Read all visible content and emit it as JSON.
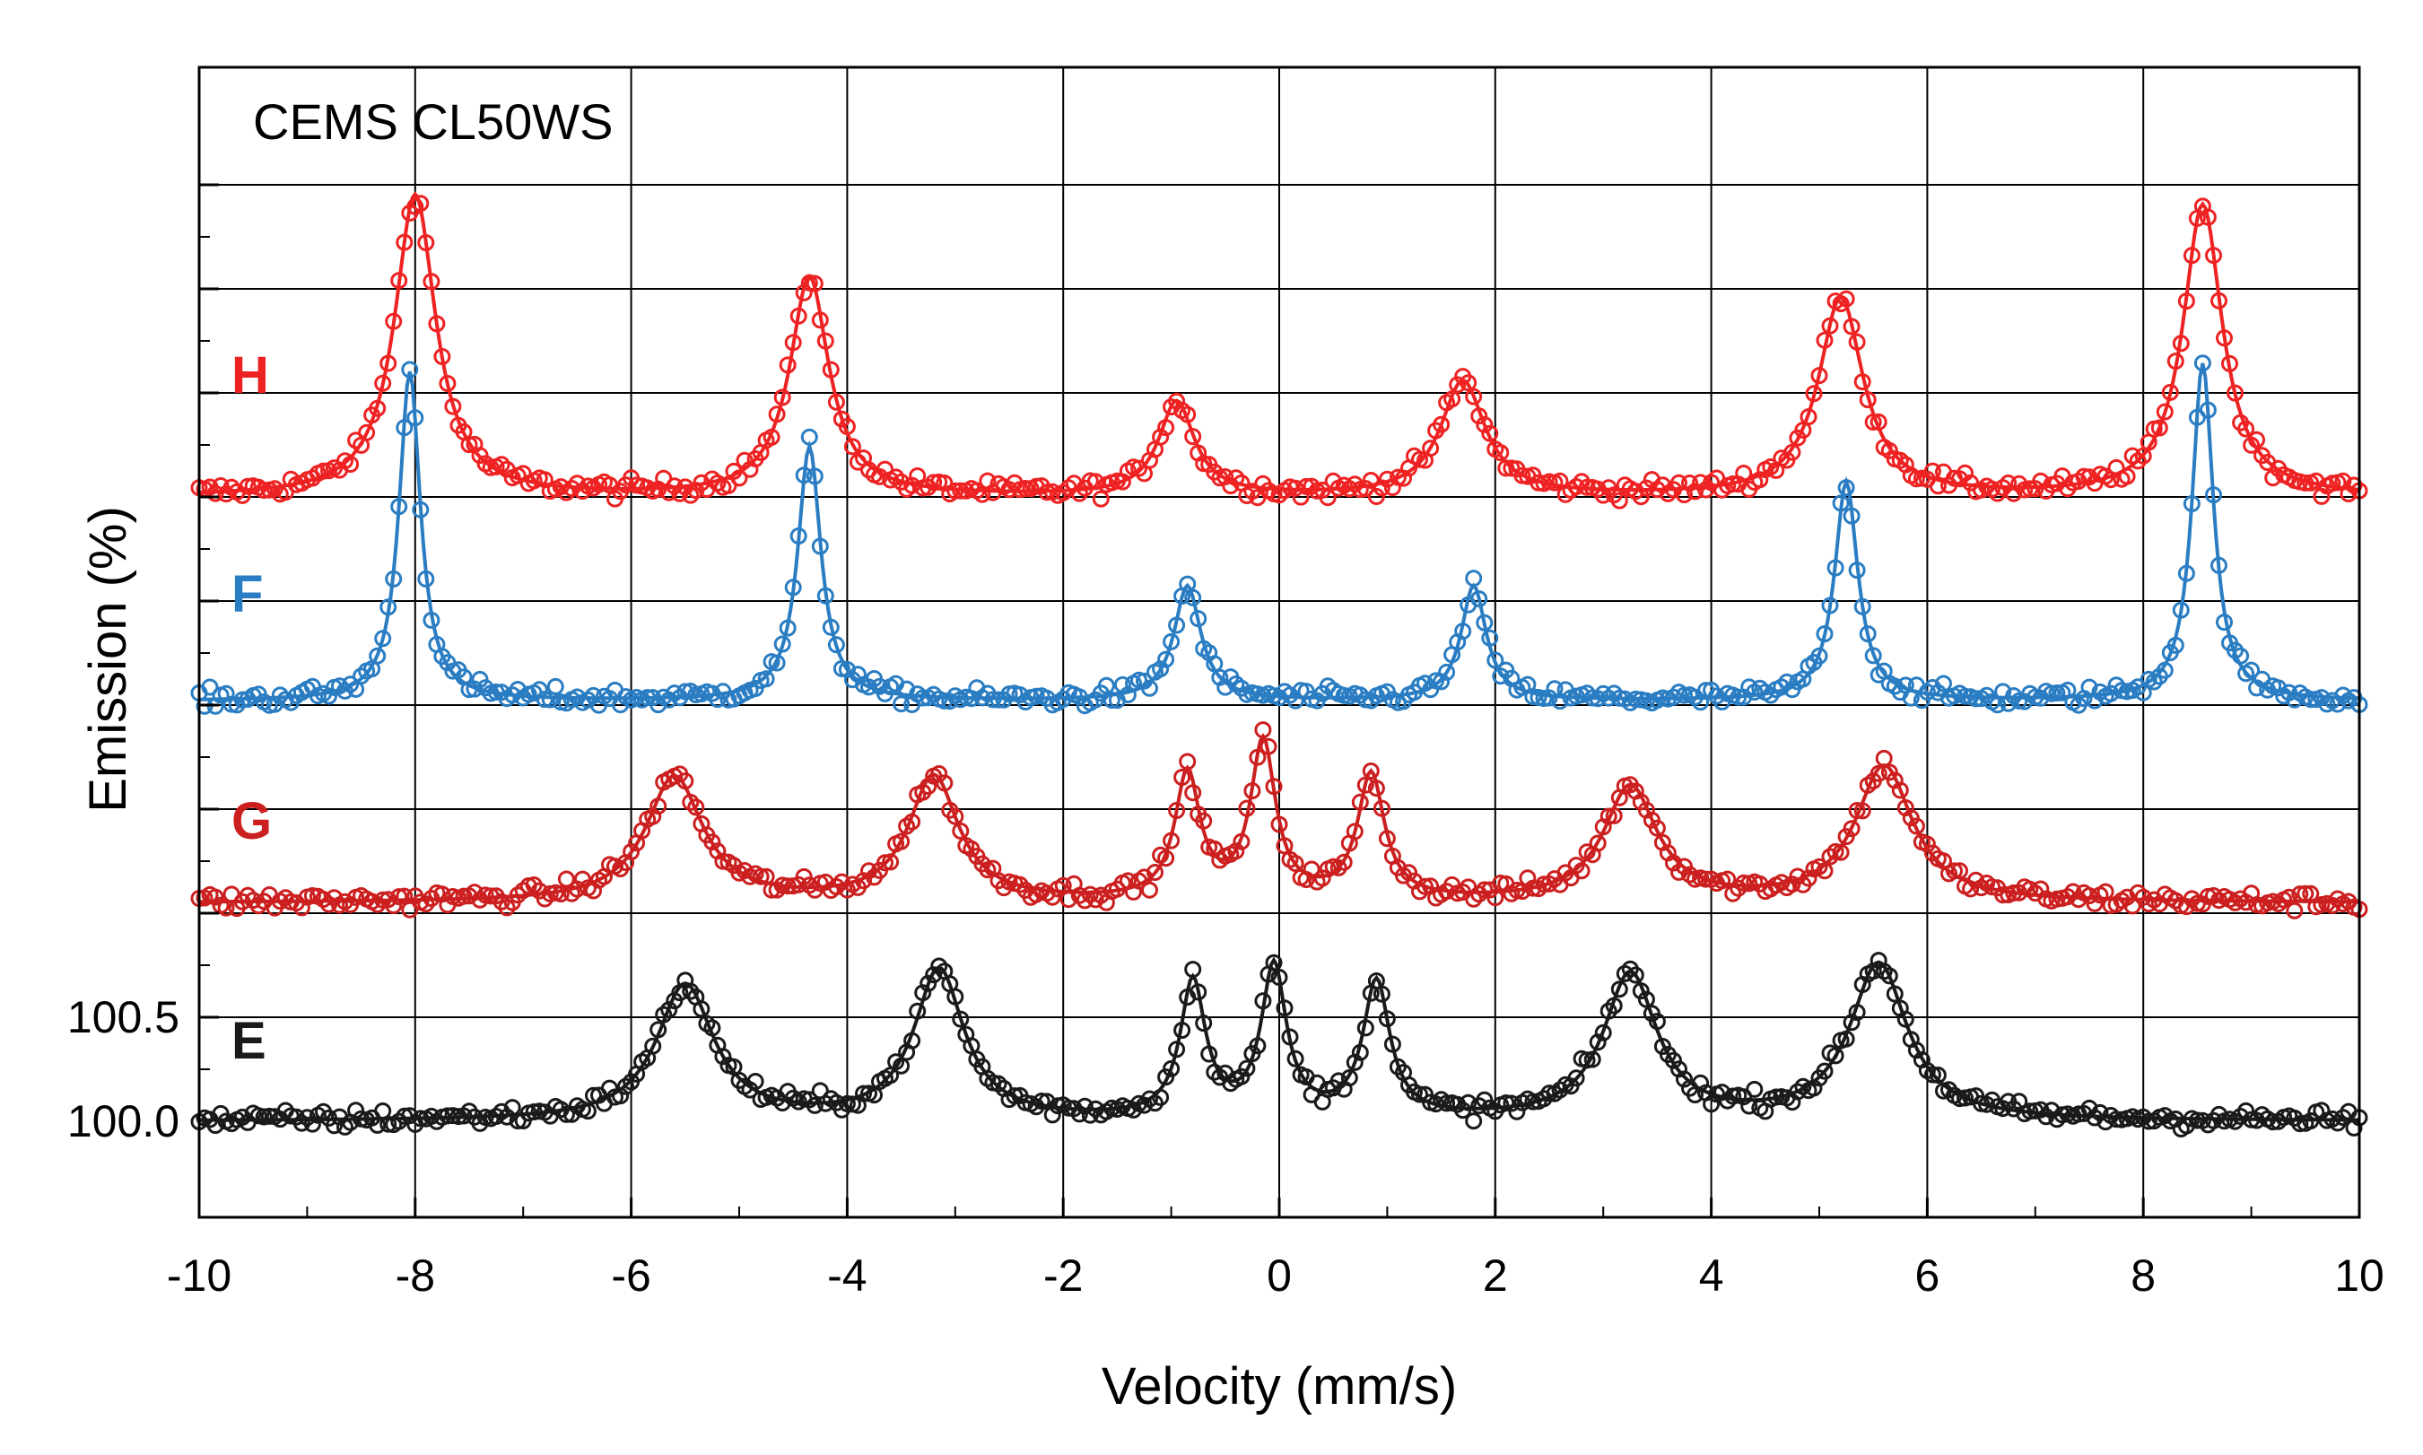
{
  "chart_data": {
    "type": "scatter",
    "title": "CEMS CL50WS",
    "xlabel": "Velocity (mm/s)",
    "ylabel": "Emission (%)",
    "xlim": [
      -10,
      10
    ],
    "x_ticks": [
      -10,
      -8,
      -6,
      -4,
      -2,
      0,
      2,
      4,
      6,
      8,
      10
    ],
    "x_tick_labels": [
      "-10",
      "-8",
      "-6",
      "-4",
      "-2",
      "0",
      "2",
      "4",
      "6",
      "8",
      "10"
    ],
    "y_ticks": [
      100.0,
      100.5
    ],
    "y_tick_labels": [
      "100.0",
      "100.5"
    ],
    "grid": true,
    "series": [
      {
        "name": "H",
        "color": "#ee2222",
        "baseline": 103.0,
        "peaks": [
          {
            "x": -8.0,
            "amp": 1.45,
            "w": 0.23
          },
          {
            "x": -4.35,
            "amp": 1.05,
            "w": 0.22
          },
          {
            "x": -0.95,
            "amp": 0.45,
            "w": 0.2
          },
          {
            "x": 1.7,
            "amp": 0.55,
            "w": 0.25
          },
          {
            "x": 5.2,
            "amp": 0.95,
            "w": 0.25
          },
          {
            "x": 8.55,
            "amp": 1.4,
            "w": 0.22
          }
        ]
      },
      {
        "name": "F",
        "color": "#2a7dc2",
        "baseline": 102.02,
        "peaks": [
          {
            "x": -8.05,
            "amp": 1.58,
            "w": 0.12
          },
          {
            "x": -4.35,
            "amp": 1.22,
            "w": 0.13
          },
          {
            "x": -0.85,
            "amp": 0.55,
            "w": 0.15
          },
          {
            "x": 1.8,
            "amp": 0.55,
            "w": 0.14
          },
          {
            "x": 5.25,
            "amp": 1.05,
            "w": 0.13
          },
          {
            "x": 8.55,
            "amp": 1.62,
            "w": 0.12
          }
        ]
      },
      {
        "name": "G",
        "color": "#cc1f1f",
        "baseline": 101.05,
        "peaks": [
          {
            "x": -5.6,
            "amp": 0.6,
            "w": 0.32
          },
          {
            "x": -3.2,
            "amp": 0.6,
            "w": 0.28
          },
          {
            "x": -0.85,
            "amp": 0.6,
            "w": 0.14
          },
          {
            "x": -0.15,
            "amp": 0.75,
            "w": 0.14
          },
          {
            "x": 0.85,
            "amp": 0.6,
            "w": 0.15
          },
          {
            "x": 3.25,
            "amp": 0.55,
            "w": 0.3
          },
          {
            "x": 5.6,
            "amp": 0.65,
            "w": 0.32
          }
        ]
      },
      {
        "name": "E",
        "color": "#1a1a1a",
        "baseline": 100.0,
        "peaks": [
          {
            "x": -5.5,
            "amp": 0.65,
            "w": 0.32
          },
          {
            "x": -3.15,
            "amp": 0.72,
            "w": 0.28
          },
          {
            "x": -0.8,
            "amp": 0.65,
            "w": 0.14
          },
          {
            "x": -0.05,
            "amp": 0.72,
            "w": 0.14
          },
          {
            "x": 0.9,
            "amp": 0.65,
            "w": 0.15
          },
          {
            "x": 3.25,
            "amp": 0.7,
            "w": 0.3
          },
          {
            "x": 5.55,
            "amp": 0.75,
            "w": 0.32
          }
        ]
      }
    ]
  }
}
